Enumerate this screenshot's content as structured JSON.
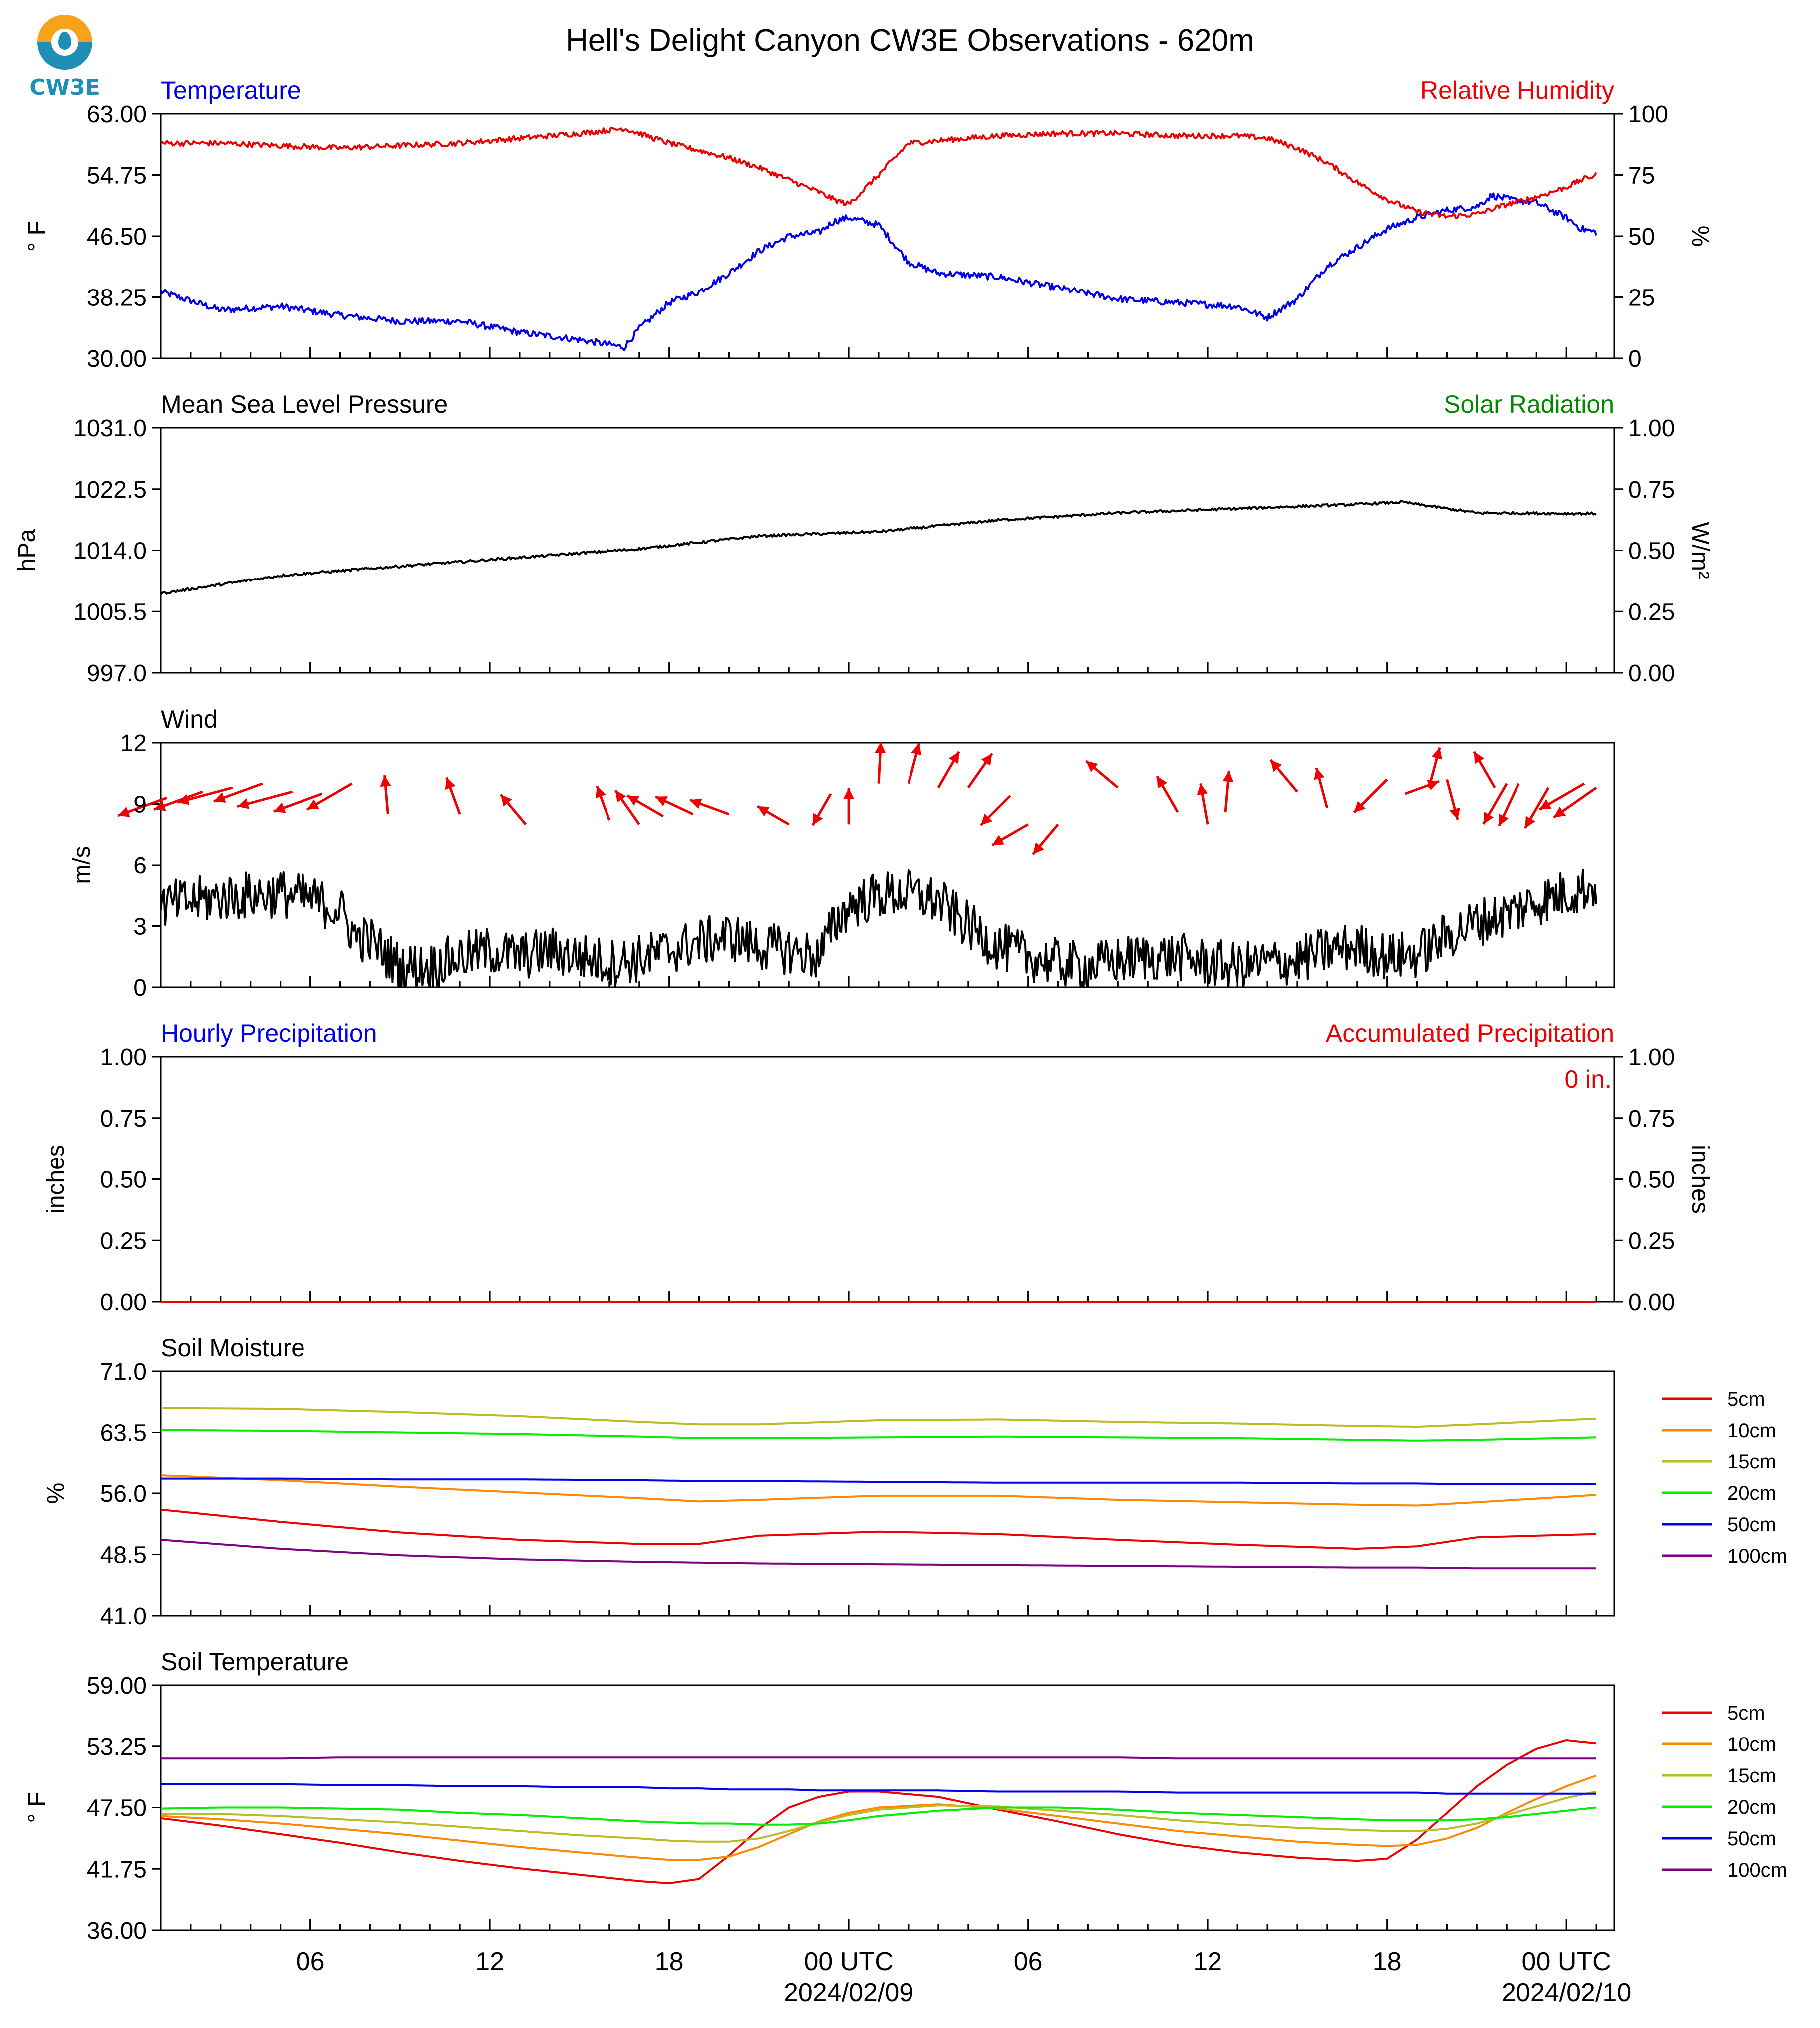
{
  "title": "Hell's Delight Canyon CW3E Observations - 620m",
  "logo": {
    "text": "CW3E"
  },
  "x_axis": {
    "tick_labels": [
      "06",
      "12",
      "18",
      "00 UTC",
      "06",
      "12",
      "18",
      "00 UTC"
    ],
    "date_labels": [
      "2024/02/09",
      "2024/02/10"
    ]
  },
  "chart_data": [
    {
      "type": "line",
      "title_left": "Temperature",
      "title_right": "Relative Humidity",
      "ylabel_left": "° F",
      "ylabel_right": "%",
      "ylim_left": [
        30.0,
        63.0
      ],
      "ylim_right": [
        0,
        100
      ],
      "yticks_left": [
        "30.00",
        "38.25",
        "46.50",
        "54.75",
        "63.00"
      ],
      "yticks_right": [
        "0",
        "25",
        "50",
        "75",
        "100"
      ],
      "x_hours": [
        0,
        2,
        4,
        6,
        8,
        10,
        12,
        14,
        15.5,
        16,
        17,
        18,
        19,
        20,
        21,
        22,
        22.5,
        23,
        24,
        25,
        26,
        28,
        30,
        32,
        34,
        36,
        37,
        38,
        39,
        40,
        41,
        42,
        43,
        44,
        44.5,
        45,
        46,
        47,
        47.5,
        48
      ],
      "series": [
        {
          "name": "Temperature",
          "color": "#0000ee",
          "axis": "left",
          "values": [
            39.0,
            36.5,
            37.0,
            35.8,
            35.0,
            35.0,
            33.5,
            32.5,
            31.5,
            34.0,
            37.5,
            39.0,
            41.5,
            44.5,
            46.5,
            47.0,
            48.5,
            49.0,
            48.0,
            43.0,
            41.5,
            41.0,
            39.5,
            38.0,
            37.5,
            37.0,
            35.5,
            38.0,
            42.5,
            45.0,
            47.5,
            49.0,
            50.0,
            50.5,
            52.0,
            51.5,
            51.0,
            49.0,
            47.5,
            47.0
          ]
        },
        {
          "name": "Relative Humidity",
          "color": "#ee0000",
          "axis": "right",
          "values": [
            88,
            88,
            87,
            86,
            87,
            88,
            90,
            92,
            94,
            92,
            88,
            85,
            82,
            78,
            73,
            68,
            65,
            63,
            75,
            88,
            89,
            91,
            92,
            92,
            91,
            91,
            90,
            86,
            80,
            72,
            65,
            60,
            58,
            59,
            61,
            63,
            66,
            70,
            73,
            75
          ]
        }
      ]
    },
    {
      "type": "line",
      "title_left": "Mean Sea Level Pressure",
      "title_right": "Solar Radiation",
      "ylabel_left": "hPa",
      "ylabel_right": "W/m²",
      "ylim_left": [
        997.0,
        1031.0
      ],
      "ylim_right": [
        0.0,
        1.0
      ],
      "yticks_left": [
        "997.0",
        "1005.5",
        "1014.0",
        "1022.5",
        "1031.0"
      ],
      "yticks_right": [
        "0.00",
        "0.25",
        "0.50",
        "0.75",
        "1.00"
      ],
      "x_hours": [
        0,
        4,
        8,
        12,
        16,
        20,
        24,
        28,
        32,
        36,
        40,
        41.5,
        44,
        48
      ],
      "series": [
        {
          "name": "Mean Sea Level Pressure",
          "color": "#000000",
          "axis": "left",
          "values": [
            1008.0,
            1010.5,
            1011.8,
            1013.0,
            1014.2,
            1016.0,
            1016.6,
            1018.2,
            1019.2,
            1019.8,
            1020.4,
            1020.7,
            1019.2,
            1019.1
          ]
        }
      ]
    },
    {
      "type": "line",
      "title_left": "Wind",
      "ylabel_left": "m/s",
      "ylim_left": [
        0,
        12
      ],
      "yticks_left": [
        "0",
        "3",
        "6",
        "9",
        "12"
      ],
      "x_hours": [
        0,
        1,
        2,
        3,
        4,
        5,
        6,
        6.5,
        7,
        8,
        9,
        10,
        11,
        12,
        13,
        14,
        15,
        16,
        17,
        18,
        19,
        20,
        21,
        22,
        22.5,
        23,
        24,
        25,
        26,
        27,
        28,
        29,
        30,
        31,
        32,
        33,
        34,
        35,
        36,
        37,
        38,
        39,
        40,
        41,
        42,
        43,
        44,
        45,
        46,
        47,
        48
      ],
      "series": [
        {
          "name": "Wind Speed",
          "color": "#000000",
          "axis": "left",
          "values": [
            4.0,
            4.2,
            4.4,
            4.5,
            4.6,
            4.3,
            3.8,
            2.5,
            2.3,
            1.0,
            1.0,
            1.5,
            1.8,
            1.5,
            1.8,
            1.5,
            1.2,
            1.4,
            1.8,
            2.2,
            2.5,
            2.0,
            1.8,
            1.5,
            3.0,
            4.0,
            4.5,
            4.6,
            4.2,
            3.0,
            2.0,
            1.5,
            1.2,
            1.0,
            1.3,
            1.5,
            1.5,
            1.2,
            1.0,
            1.2,
            1.3,
            1.8,
            2.0,
            1.5,
            1.6,
            2.5,
            3.2,
            3.6,
            4.2,
            4.6,
            5.0
          ]
        }
      ],
      "wind_vectors": {
        "color": "#ee0000",
        "hours": [
          0.2,
          1.4,
          2.4,
          3.4,
          4.4,
          5.4,
          6.4,
          7.6,
          10.0,
          12.2,
          15.0,
          16.0,
          16.8,
          17.8,
          19.0,
          21.0,
          22.4,
          23.0,
          24.0,
          25.0,
          26.0,
          27.0,
          28.4,
          29.0,
          30.0,
          32.0,
          34.0,
          35.0,
          35.6,
          38.0,
          39.0,
          41.0,
          41.6,
          42.4,
          43.0,
          44.6,
          45.0,
          45.4,
          46.4,
          47.6,
          48.0
        ],
        "levels": [
          9.3,
          9.6,
          9.8,
          10.0,
          9.6,
          9.5,
          10.0,
          8.5,
          8.5,
          8.0,
          8.2,
          8.0,
          8.4,
          8.5,
          8.5,
          8.0,
          9.5,
          8.0,
          10.0,
          10.0,
          9.8,
          9.8,
          9.4,
          8.0,
          8.0,
          9.8,
          8.6,
          8.0,
          8.6,
          9.6,
          8.8,
          10.2,
          9.5,
          9.8,
          10.2,
          9.8,
          10.0,
          10.0,
          9.8,
          10.0,
          9.8
        ],
        "directions_deg": [
          250,
          250,
          255,
          250,
          255,
          250,
          240,
          355,
          340,
          320,
          340,
          325,
          300,
          295,
          290,
          300,
          210,
          360,
          3,
          15,
          30,
          35,
          225,
          240,
          220,
          310,
          330,
          350,
          5,
          320,
          345,
          225,
          70,
          15,
          165,
          330,
          210,
          205,
          210,
          240,
          235
        ],
        "speeds": [
          2.0,
          2.0,
          2.2,
          2.0,
          2.2,
          2.0,
          2.0,
          1.5,
          1.5,
          1.5,
          1.4,
          1.6,
          1.6,
          1.6,
          1.6,
          1.4,
          1.4,
          1.4,
          1.6,
          1.6,
          1.6,
          1.6,
          1.6,
          1.6,
          1.5,
          1.6,
          1.6,
          1.6,
          1.6,
          1.6,
          1.6,
          1.8,
          1.4,
          1.6,
          1.6,
          1.6,
          1.8,
          1.8,
          1.8,
          2.0,
          2.0
        ]
      }
    },
    {
      "type": "line",
      "title_left": "Hourly Precipitation",
      "title_right": "Accumulated Precipitation",
      "ylabel_left": "inches",
      "ylabel_right": "inches",
      "ylim_left": [
        0.0,
        1.0
      ],
      "ylim_right": [
        0.0,
        1.0
      ],
      "yticks_left": [
        "0.00",
        "0.25",
        "0.50",
        "0.75",
        "1.00"
      ],
      "yticks_right": [
        "0.00",
        "0.25",
        "0.50",
        "0.75",
        "1.00"
      ],
      "annotation": "0 in.",
      "x_hours": [
        0,
        48
      ],
      "series": [
        {
          "name": "Accumulated Precipitation",
          "color": "#ee0000",
          "axis": "right",
          "values": [
            0,
            0
          ]
        }
      ]
    },
    {
      "type": "line",
      "title_left": "Soil Moisture",
      "ylabel_left": "%",
      "ylim_left": [
        41.0,
        71.0
      ],
      "yticks_left": [
        "41.0",
        "48.5",
        "56.0",
        "63.5",
        "71.0"
      ],
      "legend": "right",
      "x_hours": [
        0,
        4,
        8,
        12,
        16,
        18,
        20,
        24,
        28,
        32,
        36,
        40,
        42,
        44,
        48
      ],
      "series": [
        {
          "name": "5cm",
          "color": "#ee0000",
          "values": [
            54.0,
            52.5,
            51.2,
            50.3,
            49.8,
            49.8,
            50.8,
            51.3,
            51.0,
            50.3,
            49.7,
            49.2,
            49.5,
            50.6,
            51.0
          ]
        },
        {
          "name": "10cm",
          "color": "#ff8800",
          "values": [
            58.2,
            57.6,
            56.8,
            56.1,
            55.4,
            55.0,
            55.2,
            55.7,
            55.7,
            55.2,
            54.9,
            54.6,
            54.5,
            54.9,
            55.8
          ]
        },
        {
          "name": "15cm",
          "color": "#bbbb22",
          "values": [
            66.5,
            66.4,
            66.0,
            65.5,
            64.8,
            64.5,
            64.5,
            65.0,
            65.1,
            64.8,
            64.6,
            64.3,
            64.2,
            64.5,
            65.2
          ]
        },
        {
          "name": "20cm",
          "color": "#00ee00",
          "values": [
            63.8,
            63.7,
            63.5,
            63.3,
            63.0,
            62.8,
            62.8,
            62.9,
            63.0,
            62.9,
            62.8,
            62.6,
            62.5,
            62.6,
            62.9
          ]
        },
        {
          "name": "50cm",
          "color": "#0000ee",
          "values": [
            57.8,
            57.8,
            57.7,
            57.7,
            57.6,
            57.5,
            57.5,
            57.4,
            57.3,
            57.3,
            57.3,
            57.2,
            57.2,
            57.1,
            57.1
          ]
        },
        {
          "name": "100cm",
          "color": "#800080",
          "values": [
            50.3,
            49.2,
            48.4,
            47.9,
            47.6,
            47.5,
            47.4,
            47.3,
            47.2,
            47.1,
            47.0,
            46.9,
            46.9,
            46.8,
            46.8
          ]
        }
      ]
    },
    {
      "type": "line",
      "title_left": "Soil Temperature",
      "ylabel_left": "° F",
      "ylim_left": [
        36.0,
        59.0
      ],
      "yticks_left": [
        "36.00",
        "41.75",
        "47.50",
        "53.25",
        "59.00"
      ],
      "legend": "right",
      "x_hours": [
        0,
        2,
        4,
        6,
        8,
        10,
        12,
        14,
        16,
        17,
        18,
        19,
        20,
        21,
        22,
        23,
        24,
        26,
        28,
        30,
        32,
        34,
        36,
        38,
        40,
        41,
        42,
        43,
        44,
        45,
        46,
        47,
        48
      ],
      "series": [
        {
          "name": "5cm",
          "color": "#ee0000",
          "values": [
            46.5,
            45.8,
            45.0,
            44.2,
            43.3,
            42.5,
            41.8,
            41.2,
            40.6,
            40.4,
            40.8,
            43.0,
            45.5,
            47.5,
            48.5,
            49.0,
            49.0,
            48.5,
            47.3,
            46.2,
            45.0,
            44.0,
            43.3,
            42.8,
            42.5,
            42.7,
            44.5,
            47.0,
            49.5,
            51.5,
            53.0,
            53.8,
            53.5
          ]
        },
        {
          "name": "10cm",
          "color": "#ff8800",
          "values": [
            46.7,
            46.4,
            46.0,
            45.5,
            45.0,
            44.4,
            43.8,
            43.3,
            42.8,
            42.6,
            42.6,
            42.9,
            43.8,
            45.0,
            46.2,
            47.0,
            47.5,
            47.8,
            47.4,
            46.7,
            46.0,
            45.3,
            44.8,
            44.3,
            44.0,
            43.9,
            44.0,
            44.6,
            45.6,
            47.0,
            48.3,
            49.5,
            50.5
          ]
        },
        {
          "name": "15cm",
          "color": "#bbbb22",
          "values": [
            46.9,
            46.9,
            46.7,
            46.4,
            46.1,
            45.7,
            45.3,
            44.9,
            44.6,
            44.4,
            44.3,
            44.3,
            44.6,
            45.3,
            46.1,
            46.8,
            47.3,
            47.7,
            47.6,
            47.2,
            46.8,
            46.3,
            45.9,
            45.6,
            45.4,
            45.3,
            45.3,
            45.5,
            46.0,
            46.8,
            47.6,
            48.4,
            49.0
          ]
        },
        {
          "name": "20cm",
          "color": "#00ee00",
          "values": [
            47.4,
            47.5,
            47.5,
            47.4,
            47.3,
            47.0,
            46.8,
            46.5,
            46.2,
            46.1,
            46.0,
            46.0,
            45.9,
            45.9,
            46.0,
            46.3,
            46.7,
            47.2,
            47.5,
            47.5,
            47.3,
            47.0,
            46.8,
            46.6,
            46.4,
            46.3,
            46.3,
            46.3,
            46.4,
            46.6,
            46.9,
            47.2,
            47.5
          ]
        },
        {
          "name": "50cm",
          "color": "#0000ee",
          "values": [
            49.7,
            49.7,
            49.7,
            49.6,
            49.6,
            49.5,
            49.5,
            49.4,
            49.4,
            49.3,
            49.3,
            49.2,
            49.2,
            49.2,
            49.1,
            49.1,
            49.1,
            49.1,
            49.0,
            49.0,
            49.0,
            48.9,
            48.9,
            48.9,
            48.9,
            48.9,
            48.9,
            48.8,
            48.8,
            48.8,
            48.8,
            48.8,
            48.8
          ]
        },
        {
          "name": "100cm",
          "color": "#800080",
          "values": [
            52.1,
            52.1,
            52.1,
            52.2,
            52.2,
            52.2,
            52.2,
            52.2,
            52.2,
            52.2,
            52.2,
            52.2,
            52.2,
            52.2,
            52.2,
            52.2,
            52.2,
            52.2,
            52.2,
            52.2,
            52.2,
            52.1,
            52.1,
            52.1,
            52.1,
            52.1,
            52.1,
            52.1,
            52.1,
            52.1,
            52.1,
            52.1,
            52.1
          ]
        }
      ]
    }
  ]
}
